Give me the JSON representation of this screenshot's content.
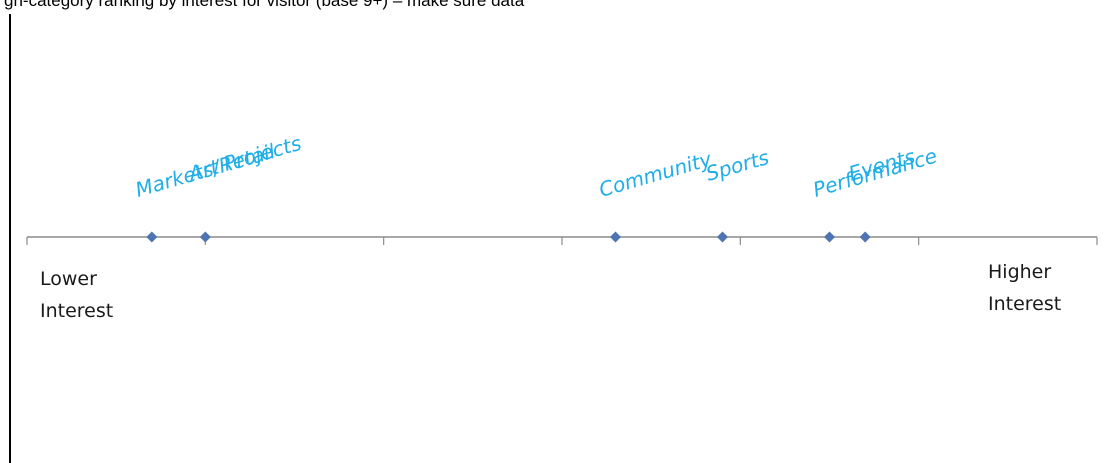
{
  "caption": "gh-category ranking by interest for visitor (base 9+) – make sure data",
  "chart_data": {
    "type": "scatter",
    "title": "",
    "axis": {
      "min_label": [
        "Lower",
        "Interest"
      ],
      "max_label": [
        "Higher",
        "Interest"
      ],
      "range": [
        0,
        6
      ],
      "grid": false
    },
    "points": [
      {
        "label": "Markets/Retail",
        "x": 0.7
      },
      {
        "label": "Art Projects",
        "x": 1.0
      },
      {
        "label": "Community",
        "x": 3.3
      },
      {
        "label": "Sports",
        "x": 3.9
      },
      {
        "label": "Performance",
        "x": 4.5
      },
      {
        "label": "Events",
        "x": 4.7
      }
    ],
    "colors": {
      "marker": "#4f74b4",
      "label": "#20aee6",
      "axis": "#8c8c8c"
    }
  }
}
